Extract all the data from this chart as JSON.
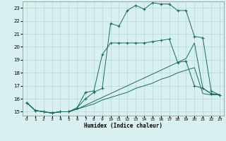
{
  "xlabel": "Humidex (Indice chaleur)",
  "bg_color": "#d8f0f0",
  "grid_color": "#b8d8d4",
  "line_color": "#1a6b60",
  "xlim": [
    -0.5,
    23.5
  ],
  "ylim": [
    14.7,
    23.5
  ],
  "yticks": [
    15,
    16,
    17,
    18,
    19,
    20,
    21,
    22,
    23
  ],
  "xticks": [
    0,
    1,
    2,
    3,
    4,
    5,
    6,
    7,
    8,
    9,
    10,
    11,
    12,
    13,
    14,
    15,
    16,
    17,
    18,
    19,
    20,
    21,
    22,
    23
  ],
  "line1_x": [
    0,
    1,
    2,
    3,
    4,
    5,
    6,
    7,
    8,
    9,
    10,
    11,
    12,
    13,
    14,
    15,
    16,
    17,
    18,
    19,
    20,
    21,
    22,
    23
  ],
  "line1_y": [
    15.7,
    15.1,
    15.0,
    14.9,
    15.0,
    15.0,
    15.2,
    15.4,
    15.6,
    15.9,
    16.1,
    16.3,
    16.5,
    16.8,
    17.0,
    17.2,
    17.5,
    17.7,
    18.0,
    18.2,
    18.4,
    16.4,
    16.3,
    16.3
  ],
  "line2_x": [
    0,
    1,
    2,
    3,
    4,
    5,
    6,
    7,
    8,
    9,
    10,
    11,
    12,
    13,
    14,
    15,
    16,
    17,
    18,
    19,
    20,
    21,
    22,
    23
  ],
  "line2_y": [
    15.7,
    15.1,
    15.0,
    14.9,
    15.0,
    15.0,
    15.2,
    15.5,
    15.8,
    16.1,
    16.4,
    16.7,
    17.0,
    17.3,
    17.6,
    17.9,
    18.2,
    18.5,
    18.8,
    19.1,
    20.3,
    16.8,
    16.4,
    16.3
  ],
  "line3_x": [
    0,
    1,
    2,
    3,
    4,
    5,
    6,
    7,
    8,
    9,
    10,
    11,
    12,
    13,
    14,
    15,
    16,
    17,
    18,
    19,
    20,
    21,
    22,
    23
  ],
  "line3_y": [
    15.7,
    15.1,
    15.0,
    14.9,
    15.0,
    15.0,
    15.3,
    16.5,
    16.6,
    19.4,
    20.3,
    20.3,
    20.3,
    20.3,
    20.3,
    20.4,
    20.5,
    20.6,
    18.8,
    18.9,
    17.0,
    16.8,
    16.4,
    16.3
  ],
  "line4_x": [
    0,
    1,
    2,
    3,
    4,
    5,
    6,
    7,
    8,
    9,
    10,
    11,
    12,
    13,
    14,
    15,
    16,
    17,
    18,
    19,
    20,
    21,
    22,
    23
  ],
  "line4_y": [
    15.7,
    15.1,
    15.0,
    14.9,
    15.0,
    15.0,
    15.3,
    16.0,
    16.5,
    16.8,
    21.8,
    21.6,
    22.8,
    23.2,
    22.9,
    23.4,
    23.3,
    23.3,
    22.8,
    22.8,
    20.8,
    20.7,
    16.6,
    16.3
  ],
  "marker_indices_line3": [
    6,
    7,
    8,
    9,
    19,
    20
  ],
  "marker_indices_line4": [
    10,
    11,
    12,
    13,
    14,
    15,
    16,
    17,
    18,
    19,
    20,
    21
  ]
}
